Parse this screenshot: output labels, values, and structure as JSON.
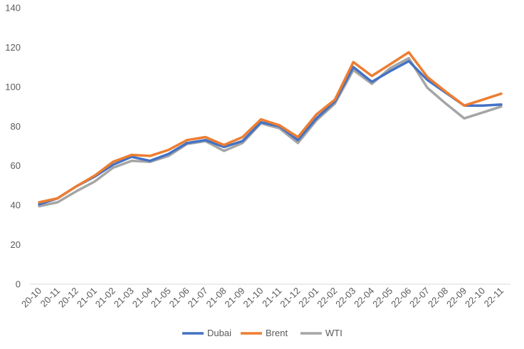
{
  "chart_data": {
    "type": "line",
    "title": "",
    "xlabel": "",
    "ylabel": "",
    "ylim": [
      0,
      140
    ],
    "y_ticks": [
      0,
      20,
      40,
      60,
      80,
      100,
      120,
      140
    ],
    "grid": false,
    "legend_position": "bottom",
    "categories": [
      "20-10",
      "20-11",
      "20-12",
      "21-01",
      "21-02",
      "21-03",
      "21-04",
      "21-05",
      "21-06",
      "21-07",
      "21-08",
      "21-09",
      "21-10",
      "21-11",
      "21-12",
      "22-01",
      "22-02",
      "22-03",
      "22-04",
      "22-05",
      "22-06",
      "22-07",
      "22-08",
      "22-09",
      "22-10",
      "22-11"
    ],
    "series": [
      {
        "name": "Dubai",
        "color": "#4472c4",
        "values": [
          40.5,
          43.5,
          49.5,
          54.5,
          60.5,
          64.5,
          62.5,
          66.0,
          71.5,
          73.0,
          69.5,
          72.5,
          82.0,
          80.0,
          73.0,
          84.0,
          92.5,
          110.0,
          102.5,
          108.0,
          113.0,
          103.5,
          97.0,
          90.5,
          90.5,
          91.0
        ]
      },
      {
        "name": "Brent",
        "color": "#ed7d31",
        "values": [
          41.5,
          43.5,
          49.5,
          55.0,
          62.0,
          65.5,
          65.0,
          68.0,
          73.0,
          74.5,
          70.5,
          74.5,
          83.5,
          80.5,
          74.5,
          86.0,
          93.5,
          112.5,
          105.5,
          111.5,
          117.5,
          105.0,
          97.5,
          90.5,
          93.5,
          96.5
        ]
      },
      {
        "name": "WTI",
        "color": "#a5a5a5",
        "values": [
          39.5,
          41.5,
          47.0,
          52.0,
          59.0,
          62.5,
          62.0,
          65.0,
          71.0,
          72.5,
          67.5,
          71.5,
          81.5,
          79.0,
          71.5,
          83.0,
          91.5,
          108.5,
          101.5,
          109.5,
          114.5,
          99.5,
          91.5,
          84.0,
          87.0,
          90.0
        ]
      }
    ]
  }
}
